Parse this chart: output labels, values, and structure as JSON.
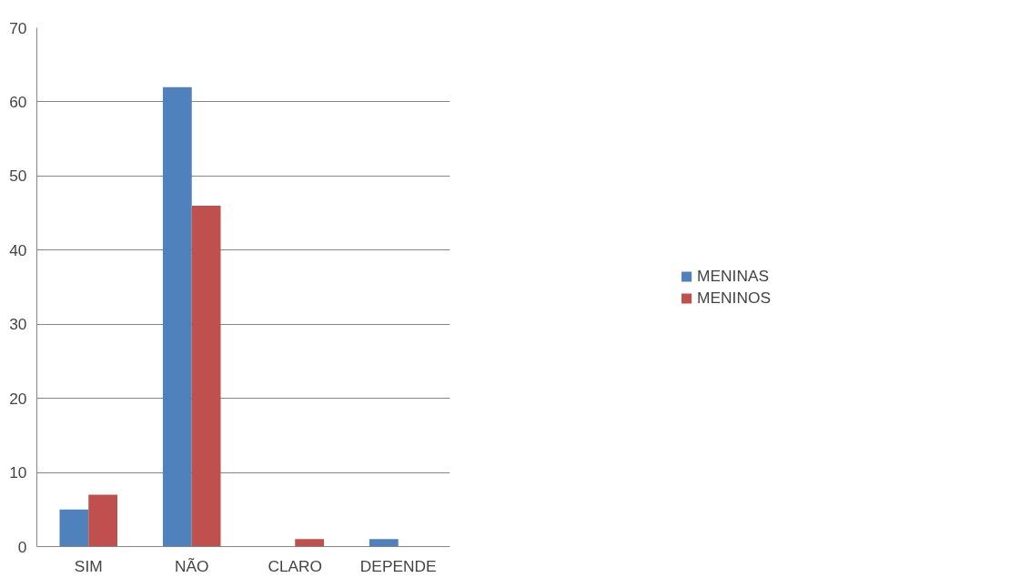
{
  "chart_data": {
    "type": "bar",
    "categories": [
      "SIM",
      "NÃO",
      "CLARO",
      "DEPENDE"
    ],
    "series": [
      {
        "name": "MENINAS",
        "color": "#4f81bd",
        "values": [
          5,
          62,
          0,
          1
        ]
      },
      {
        "name": "MENINOS",
        "color": "#c0504d",
        "values": [
          7,
          46,
          1,
          0
        ]
      }
    ],
    "ylim": [
      0,
      70
    ],
    "yticks": [
      0,
      10,
      20,
      30,
      40,
      50,
      60,
      70
    ],
    "grid": "y",
    "legend": "right"
  }
}
